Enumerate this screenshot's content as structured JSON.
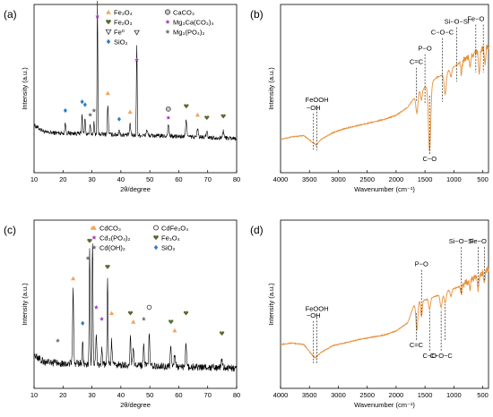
{
  "chart_data": [
    {
      "type": "line",
      "panel_label": "(a)",
      "xlabel": "2θ/degree",
      "ylabel": "Intensity (a.u.)",
      "xlim": [
        10,
        80
      ],
      "xticks": [
        10,
        20,
        30,
        40,
        50,
        60,
        70,
        80
      ],
      "legend": [
        {
          "label": "Fe₃O₄",
          "marker": "triangle",
          "color": "#f4a460"
        },
        {
          "label": "CaCO₃",
          "marker": "circle-x",
          "color": "#555555"
        },
        {
          "label": "Fe₂O₃",
          "marker": "heart",
          "color": "#556b2f"
        },
        {
          "label": "Mg₃Ca(CO₃)₄",
          "marker": "star",
          "color": "#a040c0"
        },
        {
          "label": "Fe⁰",
          "marker": "nabla",
          "color": "#333333"
        },
        {
          "label": "Mg₃(PO₄)₂",
          "marker": "star",
          "color": "#808080"
        },
        {
          "label": "SiO₂",
          "marker": "diamond",
          "color": "#2a7fc9"
        }
      ],
      "baseline": 0.28,
      "noise": 0.03,
      "peaks": [
        {
          "x": 20.8,
          "h": 0.07,
          "w": 0.25
        },
        {
          "x": 26.6,
          "h": 0.14,
          "w": 0.2
        },
        {
          "x": 27.6,
          "h": 0.11,
          "w": 0.2
        },
        {
          "x": 29.4,
          "h": 0.06,
          "w": 0.2
        },
        {
          "x": 30.7,
          "h": 0.08,
          "w": 0.2
        },
        {
          "x": 31.9,
          "h": 0.92,
          "w": 0.18
        },
        {
          "x": 35.5,
          "h": 0.2,
          "w": 0.25
        },
        {
          "x": 39.4,
          "h": 0.04,
          "w": 0.25
        },
        {
          "x": 43.2,
          "h": 0.07,
          "w": 0.3
        },
        {
          "x": 45.5,
          "h": 0.62,
          "w": 0.2
        },
        {
          "x": 49.0,
          "h": 0.04,
          "w": 0.3
        },
        {
          "x": 56.4,
          "h": 0.08,
          "w": 0.3
        },
        {
          "x": 62.6,
          "h": 0.12,
          "w": 0.3
        },
        {
          "x": 66.5,
          "h": 0.06,
          "w": 0.3
        },
        {
          "x": 69.7,
          "h": 0.04,
          "w": 0.3
        },
        {
          "x": 75.4,
          "h": 0.05,
          "w": 0.3
        }
      ],
      "markers": [
        {
          "x": 20.8,
          "y": 0.43,
          "marker": "diamond"
        },
        {
          "x": 26.6,
          "y": 0.49,
          "marker": "diamond"
        },
        {
          "x": 27.6,
          "y": 0.47,
          "marker": "diamond"
        },
        {
          "x": 29.4,
          "y": 0.4,
          "marker": "star-gray"
        },
        {
          "x": 30.7,
          "y": 0.43,
          "marker": "star-gray"
        },
        {
          "x": 31.9,
          "y": 1.08,
          "marker": "star"
        },
        {
          "x": 35.5,
          "y": 0.55,
          "marker": "triangle"
        },
        {
          "x": 39.4,
          "y": 0.37,
          "marker": "diamond"
        },
        {
          "x": 43.2,
          "y": 0.42,
          "marker": "triangle"
        },
        {
          "x": 45.5,
          "y": 0.78,
          "marker": "star"
        },
        {
          "x": 45.5,
          "y": 0.97,
          "marker": "nabla"
        },
        {
          "x": 56.4,
          "y": 0.44,
          "marker": "circle-x"
        },
        {
          "x": 56.4,
          "y": 0.38,
          "marker": "star"
        },
        {
          "x": 62.6,
          "y": 0.46,
          "marker": "heart"
        },
        {
          "x": 66.5,
          "y": 0.4,
          "marker": "triangle"
        },
        {
          "x": 69.7,
          "y": 0.38,
          "marker": "heart"
        },
        {
          "x": 75.4,
          "y": 0.39,
          "marker": "heart"
        }
      ]
    },
    {
      "type": "line",
      "panel_label": "(b)",
      "xlabel": "Wavenumber (cm⁻¹)",
      "ylabel": "Intensity (a.u.)",
      "xlim": [
        4000,
        400
      ],
      "xticks": [
        4000,
        3500,
        3000,
        2500,
        2000,
        1500,
        1000,
        500
      ],
      "xtick_labels": [
        "4000",
        "3500",
        "3000",
        "2500",
        "2000",
        "1500",
        "1000",
        "500"
      ],
      "base_curve": [
        [
          4000,
          0.22
        ],
        [
          3800,
          0.24
        ],
        [
          3600,
          0.25
        ],
        [
          3450,
          0.2
        ],
        [
          3380,
          0.18
        ],
        [
          3300,
          0.22
        ],
        [
          3100,
          0.27
        ],
        [
          2900,
          0.3
        ],
        [
          2600,
          0.33
        ],
        [
          2200,
          0.37
        ],
        [
          2000,
          0.4
        ],
        [
          1800,
          0.46
        ],
        [
          1700,
          0.52
        ],
        [
          1600,
          0.58
        ],
        [
          1450,
          0.62
        ],
        [
          1300,
          0.68
        ],
        [
          1200,
          0.7
        ],
        [
          1000,
          0.76
        ],
        [
          800,
          0.82
        ],
        [
          650,
          0.86
        ],
        [
          500,
          0.9
        ],
        [
          400,
          0.92
        ]
      ],
      "dips": [
        {
          "x": 1640,
          "d": 0.14,
          "w": 25
        },
        {
          "x": 1560,
          "d": 0.08,
          "w": 18
        },
        {
          "x": 1420,
          "d": 0.5,
          "w": 28
        },
        {
          "x": 1150,
          "d": 0.16,
          "w": 25
        },
        {
          "x": 1050,
          "d": 0.06,
          "w": 20
        },
        {
          "x": 870,
          "d": 0.1,
          "w": 15
        },
        {
          "x": 720,
          "d": 0.08,
          "w": 15
        },
        {
          "x": 560,
          "d": 0.18,
          "w": 18
        },
        {
          "x": 460,
          "d": 0.14,
          "w": 15
        }
      ],
      "bands": [
        {
          "x": 3430,
          "label": "−OH",
          "label_pos": "top",
          "y": 0.44,
          "y2": 0.14
        },
        {
          "x": 3370,
          "label": "FeOOH",
          "label_pos": "top",
          "y": 0.5,
          "y2": 0.14
        },
        {
          "x": 1650,
          "label": "C=C",
          "label_pos": "top",
          "y": 0.78,
          "y2": 0.5
        },
        {
          "x": 1500,
          "label": "P−O",
          "label_pos": "top",
          "y": 0.88,
          "y2": 0.48
        },
        {
          "x": 1420,
          "label": "C−O",
          "label_pos": "bottom",
          "y": 0.06,
          "y2": 0.55
        },
        {
          "x": 1200,
          "label": "C−O−C",
          "label_pos": "top",
          "y": 1.0,
          "y2": 0.5
        },
        {
          "x": 950,
          "label": "Si−O−Si",
          "label_pos": "top",
          "y": 1.08,
          "y2": 0.65
        },
        {
          "x": 620,
          "label": "Fe−O",
          "label_pos": "top",
          "y": 1.1,
          "y2": 0.72
        },
        {
          "x": 490,
          "label": "",
          "label_pos": "top",
          "y": 1.1,
          "y2": 0.72
        }
      ]
    },
    {
      "type": "line",
      "panel_label": "(c)",
      "xlabel": "2θ/degree",
      "ylabel": "Intensity (a.u.)",
      "xlim": [
        10,
        80
      ],
      "xticks": [
        10,
        20,
        30,
        40,
        50,
        60,
        70,
        80
      ],
      "legend": [
        {
          "label": "CdCO₃",
          "marker": "triangle",
          "color": "#f4a460"
        },
        {
          "label": "CdFe₂O₄",
          "marker": "open-circle",
          "color": "#333333"
        },
        {
          "label": "Cd₃(PO₄)₂",
          "marker": "star",
          "color": "#a040c0"
        },
        {
          "label": "Fe₃O₄",
          "marker": "heart",
          "color": "#556b2f"
        },
        {
          "label": "Cd(OH)₂",
          "marker": "star",
          "color": "#505050"
        },
        {
          "label": "SiO₂",
          "marker": "diamond",
          "color": "#2a7fc9"
        }
      ],
      "baseline": 0.18,
      "noise": 0.05,
      "peaks": [
        {
          "x": 23.5,
          "h": 0.5,
          "w": 0.25
        },
        {
          "x": 26.8,
          "h": 0.15,
          "w": 0.2
        },
        {
          "x": 29.2,
          "h": 0.78,
          "w": 0.22
        },
        {
          "x": 30.2,
          "h": 0.85,
          "w": 0.22
        },
        {
          "x": 31.5,
          "h": 0.22,
          "w": 0.22
        },
        {
          "x": 33.4,
          "h": 0.12,
          "w": 0.22
        },
        {
          "x": 35.4,
          "h": 0.58,
          "w": 0.22
        },
        {
          "x": 36.8,
          "h": 0.16,
          "w": 0.25
        },
        {
          "x": 43.3,
          "h": 0.19,
          "w": 0.25
        },
        {
          "x": 44.3,
          "h": 0.12,
          "w": 0.25
        },
        {
          "x": 47.9,
          "h": 0.14,
          "w": 0.25
        },
        {
          "x": 49.8,
          "h": 0.22,
          "w": 0.25
        },
        {
          "x": 57.3,
          "h": 0.13,
          "w": 0.3
        },
        {
          "x": 58.6,
          "h": 0.09,
          "w": 0.3
        },
        {
          "x": 62.5,
          "h": 0.17,
          "w": 0.3
        },
        {
          "x": 74.9,
          "h": 0.05,
          "w": 0.3
        }
      ],
      "markers": [
        {
          "x": 18.2,
          "y": 0.33,
          "marker": "star-gray"
        },
        {
          "x": 23.5,
          "y": 0.76,
          "marker": "triangle"
        },
        {
          "x": 26.8,
          "y": 0.45,
          "marker": "diamond"
        },
        {
          "x": 28.6,
          "y": 0.9,
          "marker": "star-gray"
        },
        {
          "x": 29.2,
          "y": 1.02,
          "marker": "heart"
        },
        {
          "x": 30.2,
          "y": 1.11,
          "marker": "triangle"
        },
        {
          "x": 31.5,
          "y": 0.56,
          "marker": "star"
        },
        {
          "x": 33.4,
          "y": 0.48,
          "marker": "star"
        },
        {
          "x": 35.4,
          "y": 0.84,
          "marker": "heart"
        },
        {
          "x": 36.8,
          "y": 0.52,
          "marker": "triangle"
        },
        {
          "x": 43.3,
          "y": 0.52,
          "marker": "heart"
        },
        {
          "x": 44.3,
          "y": 0.46,
          "marker": "triangle"
        },
        {
          "x": 47.9,
          "y": 0.48,
          "marker": "star-gray"
        },
        {
          "x": 49.8,
          "y": 0.56,
          "marker": "open-circle"
        },
        {
          "x": 57.3,
          "y": 0.46,
          "marker": "heart"
        },
        {
          "x": 58.6,
          "y": 0.4,
          "marker": "triangle"
        },
        {
          "x": 62.5,
          "y": 0.52,
          "marker": "heart"
        },
        {
          "x": 74.9,
          "y": 0.38,
          "marker": "heart"
        }
      ]
    },
    {
      "type": "line",
      "panel_label": "(d)",
      "xlabel": "Wavenumber (cm⁻¹)",
      "ylabel": "Intensity (a.u.)",
      "xlim": [
        4000,
        400
      ],
      "xticks": [
        4000,
        3500,
        3000,
        2500,
        2000,
        1500,
        1000,
        500
      ],
      "xtick_labels": [
        "4000",
        "3500",
        "3000",
        "2500",
        "2000",
        "1500",
        "1000",
        "500"
      ],
      "base_curve": [
        [
          4000,
          0.3
        ],
        [
          3800,
          0.31
        ],
        [
          3600,
          0.3
        ],
        [
          3450,
          0.22
        ],
        [
          3400,
          0.2
        ],
        [
          3300,
          0.24
        ],
        [
          3100,
          0.29
        ],
        [
          2900,
          0.31
        ],
        [
          2600,
          0.34
        ],
        [
          2200,
          0.37
        ],
        [
          2000,
          0.4
        ],
        [
          1800,
          0.46
        ],
        [
          1700,
          0.58
        ],
        [
          1600,
          0.62
        ],
        [
          1500,
          0.63
        ],
        [
          1300,
          0.66
        ],
        [
          1100,
          0.7
        ],
        [
          900,
          0.73
        ],
        [
          700,
          0.78
        ],
        [
          550,
          0.82
        ],
        [
          400,
          0.86
        ]
      ],
      "dips": [
        {
          "x": 1640,
          "d": 0.2,
          "w": 22
        },
        {
          "x": 1560,
          "d": 0.12,
          "w": 18
        },
        {
          "x": 1420,
          "d": 0.08,
          "w": 22
        },
        {
          "x": 1220,
          "d": 0.1,
          "w": 25
        },
        {
          "x": 1150,
          "d": 0.08,
          "w": 25
        },
        {
          "x": 1050,
          "d": 0.05,
          "w": 20
        },
        {
          "x": 870,
          "d": 0.06,
          "w": 15
        },
        {
          "x": 720,
          "d": 0.06,
          "w": 15
        },
        {
          "x": 580,
          "d": 0.1,
          "w": 18
        },
        {
          "x": 470,
          "d": 0.09,
          "w": 15
        }
      ],
      "bands": [
        {
          "x": 3430,
          "label": "−OH",
          "label_pos": "top",
          "y": 0.5,
          "y2": 0.16
        },
        {
          "x": 3370,
          "label": "FeOOH",
          "label_pos": "top",
          "y": 0.55,
          "y2": 0.16
        },
        {
          "x": 1650,
          "label": "C=C",
          "label_pos": "bottom",
          "y": 0.28,
          "y2": 0.54
        },
        {
          "x": 1560,
          "label": "P−O",
          "label_pos": "top",
          "y": 0.88,
          "y2": 0.52
        },
        {
          "x": 1420,
          "label": "C−O",
          "label_pos": "bottom",
          "y": 0.2,
          "y2": 0.56
        },
        {
          "x": 1220,
          "label": "C−O−C",
          "label_pos": "bottom",
          "y": 0.2,
          "y2": 0.56
        },
        {
          "x": 1150,
          "label": "",
          "label_pos": "bottom",
          "y": 0.28,
          "y2": 0.6
        },
        {
          "x": 870,
          "label": "Si−O−Si",
          "label_pos": "top",
          "y": 1.05,
          "y2": 0.68
        },
        {
          "x": 580,
          "label": "Fe−O",
          "label_pos": "top",
          "y": 1.05,
          "y2": 0.74
        },
        {
          "x": 470,
          "label": "",
          "label_pos": "top",
          "y": 1.05,
          "y2": 0.78
        }
      ]
    }
  ]
}
